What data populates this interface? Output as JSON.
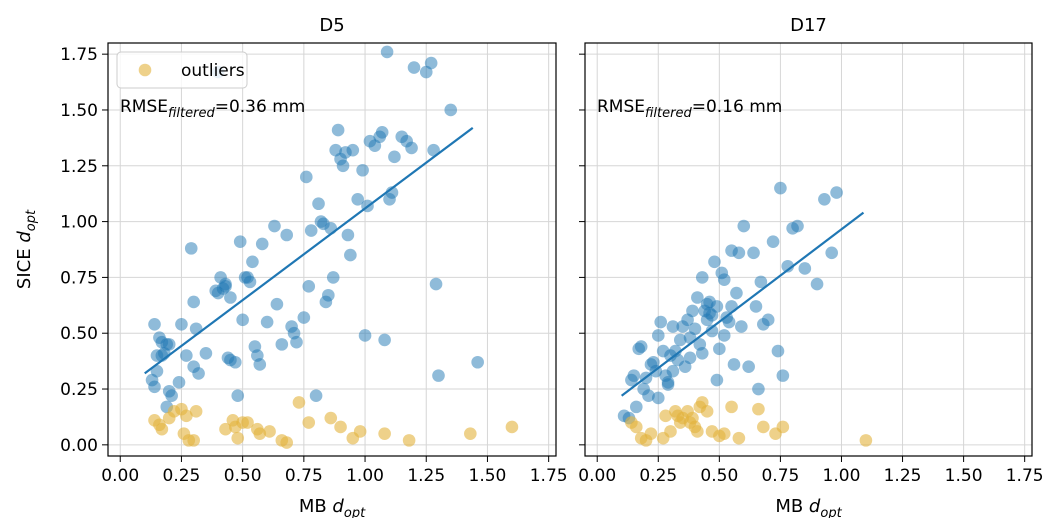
{
  "chart_data": [
    {
      "type": "scatter",
      "title": "D5",
      "xlabel": "MB",
      "xlabel_var": "d",
      "xlabel_sub": "opt",
      "ylabel": "SICE",
      "ylabel_var": "d",
      "ylabel_sub": "opt",
      "xlim": [
        -0.05,
        1.78
      ],
      "ylim": [
        -0.05,
        1.8
      ],
      "xticks": [
        "0.00",
        "0.25",
        "0.50",
        "0.75",
        "1.00",
        "1.25",
        "1.50",
        "1.75"
      ],
      "yticks": [
        "0.00",
        "0.25",
        "0.50",
        "0.75",
        "1.00",
        "1.25",
        "1.50",
        "1.75"
      ],
      "grid": true,
      "legend": {
        "placement": "upper-left",
        "entries": [
          "outliers"
        ]
      },
      "annotation": {
        "prefix": "RMSE",
        "sub": "filtered",
        "suffix": "=0.36 mm"
      },
      "colors": {
        "points": "#1f77b4",
        "outliers": "#e3b23c",
        "line": "#1f77b4"
      },
      "fit_line": {
        "x": [
          0.1,
          1.44
        ],
        "y": [
          0.32,
          1.42
        ]
      },
      "series": [
        {
          "role": "points",
          "x": [
            0.14,
            0.15,
            0.16,
            0.17,
            0.18,
            0.19,
            0.2,
            0.21,
            0.13,
            0.14,
            0.15,
            0.17,
            0.19,
            0.25,
            0.24,
            0.3,
            0.31,
            0.32,
            0.3,
            0.35,
            0.39,
            0.4,
            0.41,
            0.42,
            0.43,
            0.44,
            0.45,
            0.47,
            0.49,
            0.5,
            0.51,
            0.52,
            0.53,
            0.54,
            0.55,
            0.56,
            0.57,
            0.58,
            0.6,
            0.63,
            0.64,
            0.66,
            0.68,
            0.7,
            0.71,
            0.72,
            0.75,
            0.76,
            0.77,
            0.78,
            0.8,
            0.81,
            0.82,
            0.83,
            0.84,
            0.85,
            0.86,
            0.87,
            0.88,
            0.89,
            0.9,
            0.91,
            0.92,
            0.93,
            0.94,
            0.95,
            0.97,
            0.99,
            1.0,
            1.01,
            1.02,
            1.04,
            1.06,
            1.07,
            1.08,
            1.09,
            1.1,
            1.11,
            1.12,
            1.15,
            1.17,
            1.19,
            1.2,
            1.25,
            1.27,
            1.28,
            1.29,
            1.3,
            1.35,
            1.46,
            0.4,
            0.43,
            0.48,
            0.45,
            0.29,
            0.27,
            0.2
          ],
          "y": [
            0.54,
            0.4,
            0.48,
            0.46,
            0.41,
            0.45,
            0.45,
            0.22,
            0.29,
            0.26,
            0.33,
            0.4,
            0.17,
            0.54,
            0.28,
            0.64,
            0.52,
            0.32,
            0.35,
            0.41,
            0.69,
            0.68,
            0.75,
            0.7,
            0.72,
            0.39,
            0.66,
            0.37,
            0.91,
            0.56,
            0.75,
            0.75,
            0.73,
            0.82,
            0.44,
            0.4,
            0.36,
            0.9,
            0.55,
            0.98,
            0.63,
            0.45,
            0.94,
            0.53,
            0.5,
            0.46,
            0.57,
            1.2,
            0.71,
            0.96,
            0.22,
            1.08,
            1.0,
            0.99,
            0.64,
            0.67,
            0.97,
            0.75,
            1.32,
            1.41,
            1.28,
            1.25,
            1.31,
            0.94,
            0.85,
            1.32,
            1.1,
            1.23,
            0.49,
            1.07,
            1.36,
            1.34,
            1.38,
            1.4,
            0.47,
            1.76,
            1.1,
            1.13,
            1.29,
            1.38,
            1.36,
            1.33,
            1.69,
            1.67,
            1.71,
            1.32,
            0.72,
            0.31,
            1.5,
            0.37,
            1.67,
            0.71,
            0.22,
            0.38,
            0.88,
            0.4,
            0.24
          ]
        },
        {
          "role": "outliers",
          "name": "outliers",
          "x": [
            0.14,
            0.16,
            0.17,
            0.2,
            0.22,
            0.25,
            0.26,
            0.28,
            0.31,
            0.43,
            0.46,
            0.47,
            0.48,
            0.5,
            0.52,
            0.56,
            0.57,
            0.61,
            0.66,
            0.68,
            0.73,
            0.77,
            0.86,
            0.9,
            0.95,
            0.98,
            1.08,
            1.18,
            1.43,
            1.6,
            0.27,
            0.3
          ],
          "y": [
            0.11,
            0.09,
            0.07,
            0.12,
            0.15,
            0.16,
            0.05,
            0.02,
            0.15,
            0.07,
            0.11,
            0.08,
            0.03,
            0.1,
            0.1,
            0.07,
            0.05,
            0.06,
            0.02,
            0.01,
            0.19,
            0.1,
            0.12,
            0.08,
            0.03,
            0.06,
            0.05,
            0.02,
            0.05,
            0.08,
            0.13,
            0.02
          ]
        }
      ]
    },
    {
      "type": "scatter",
      "title": "D17",
      "xlabel": "MB",
      "xlabel_var": "d",
      "xlabel_sub": "opt",
      "ylabel": "",
      "xlim": [
        -0.05,
        1.78
      ],
      "ylim": [
        -0.05,
        1.8
      ],
      "xticks": [
        "0.00",
        "0.25",
        "0.50",
        "0.75",
        "1.00",
        "1.25",
        "1.50",
        "1.75"
      ],
      "grid": true,
      "annotation": {
        "prefix": "RMSE",
        "sub": "filtered",
        "suffix": "=0.16 mm"
      },
      "colors": {
        "points": "#1f77b4",
        "outliers": "#e3b23c",
        "line": "#1f77b4"
      },
      "fit_line": {
        "x": [
          0.1,
          1.09
        ],
        "y": [
          0.22,
          1.04
        ]
      },
      "series": [
        {
          "role": "points",
          "x": [
            0.11,
            0.13,
            0.14,
            0.15,
            0.16,
            0.17,
            0.18,
            0.19,
            0.2,
            0.21,
            0.22,
            0.23,
            0.24,
            0.25,
            0.26,
            0.27,
            0.28,
            0.29,
            0.3,
            0.31,
            0.32,
            0.33,
            0.34,
            0.35,
            0.36,
            0.37,
            0.38,
            0.39,
            0.4,
            0.41,
            0.42,
            0.43,
            0.44,
            0.45,
            0.46,
            0.47,
            0.48,
            0.49,
            0.5,
            0.51,
            0.52,
            0.53,
            0.54,
            0.55,
            0.56,
            0.57,
            0.58,
            0.59,
            0.6,
            0.62,
            0.64,
            0.65,
            0.66,
            0.68,
            0.7,
            0.72,
            0.74,
            0.75,
            0.76,
            0.78,
            0.8,
            0.82,
            0.85,
            0.9,
            0.93,
            0.96,
            0.98,
            0.67,
            0.55,
            0.47,
            0.45,
            0.52,
            0.38,
            0.43,
            0.31,
            0.29,
            0.25,
            0.49,
            0.46
          ],
          "y": [
            0.13,
            0.12,
            0.29,
            0.31,
            0.17,
            0.43,
            0.44,
            0.25,
            0.3,
            0.22,
            0.36,
            0.37,
            0.33,
            0.49,
            0.55,
            0.42,
            0.31,
            0.28,
            0.4,
            0.53,
            0.42,
            0.38,
            0.47,
            0.53,
            0.35,
            0.56,
            0.48,
            0.6,
            0.52,
            0.66,
            0.45,
            0.75,
            0.6,
            0.63,
            0.59,
            0.58,
            0.82,
            0.29,
            0.43,
            0.77,
            0.74,
            0.57,
            0.55,
            0.87,
            0.36,
            0.68,
            0.86,
            0.53,
            0.98,
            0.35,
            0.86,
            0.62,
            0.25,
            0.54,
            0.56,
            0.91,
            0.42,
            1.15,
            0.31,
            0.8,
            0.97,
            0.98,
            0.79,
            0.72,
            1.1,
            0.86,
            1.13,
            0.73,
            0.62,
            0.51,
            0.56,
            0.49,
            0.39,
            0.41,
            0.33,
            0.27,
            0.21,
            0.62,
            0.64
          ]
        },
        {
          "role": "outliers",
          "name": "outliers",
          "x": [
            0.14,
            0.16,
            0.18,
            0.2,
            0.22,
            0.27,
            0.3,
            0.32,
            0.33,
            0.35,
            0.37,
            0.38,
            0.39,
            0.4,
            0.41,
            0.42,
            0.43,
            0.45,
            0.47,
            0.5,
            0.52,
            0.55,
            0.58,
            0.66,
            0.68,
            0.73,
            0.76,
            1.1,
            0.28,
            0.34
          ],
          "y": [
            0.1,
            0.08,
            0.03,
            0.02,
            0.05,
            0.03,
            0.06,
            0.15,
            0.13,
            0.12,
            0.15,
            0.1,
            0.12,
            0.08,
            0.06,
            0.17,
            0.19,
            0.15,
            0.06,
            0.04,
            0.05,
            0.17,
            0.03,
            0.16,
            0.08,
            0.05,
            0.08,
            0.02,
            0.13,
            0.1
          ]
        }
      ]
    }
  ]
}
